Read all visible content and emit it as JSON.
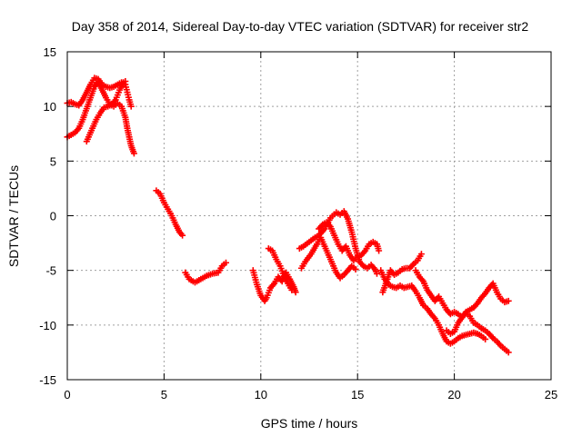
{
  "chart_data": {
    "type": "scatter",
    "title": "Day 358 of 2014, Sidereal Day-to-day VTEC variation (SDTVAR) for receiver str2",
    "xlabel": "GPS time / hours",
    "ylabel": "SDTVAR / TECUs",
    "xlim": [
      0,
      25
    ],
    "ylim": [
      -15,
      15
    ],
    "xticks": [
      0,
      5,
      10,
      15,
      20,
      25
    ],
    "yticks": [
      -15,
      -10,
      -5,
      0,
      5,
      10,
      15
    ],
    "grid": true,
    "marker": "+",
    "color": "#ff0000",
    "series": [
      {
        "name": "arc-1",
        "points": [
          [
            0.0,
            10.3
          ],
          [
            0.2,
            10.4
          ],
          [
            0.4,
            10.2
          ],
          [
            0.6,
            10.1
          ],
          [
            0.8,
            10.6
          ],
          [
            1.0,
            11.3
          ],
          [
            1.2,
            12.0
          ],
          [
            1.4,
            12.6
          ],
          [
            1.6,
            12.5
          ],
          [
            1.8,
            12.0
          ],
          [
            2.0,
            11.8
          ],
          [
            2.2,
            11.7
          ],
          [
            2.4,
            11.8
          ],
          [
            2.6,
            12.0
          ],
          [
            2.8,
            12.2
          ],
          [
            3.0,
            12.0
          ],
          [
            3.1,
            11.3
          ],
          [
            3.2,
            10.6
          ],
          [
            3.3,
            10.0
          ]
        ]
      },
      {
        "name": "arc-2",
        "points": [
          [
            0.0,
            7.2
          ],
          [
            0.2,
            7.4
          ],
          [
            0.4,
            7.6
          ],
          [
            0.6,
            8.0
          ],
          [
            0.8,
            8.8
          ],
          [
            1.0,
            9.8
          ],
          [
            1.2,
            10.8
          ],
          [
            1.4,
            11.8
          ],
          [
            1.6,
            12.2
          ],
          [
            1.8,
            11.5
          ],
          [
            2.0,
            10.8
          ],
          [
            2.2,
            10.2
          ],
          [
            2.4,
            10.0
          ],
          [
            2.6,
            10.3
          ],
          [
            2.8,
            10.0
          ],
          [
            3.0,
            9.0
          ],
          [
            3.1,
            8.0
          ],
          [
            3.2,
            7.2
          ],
          [
            3.3,
            6.4
          ],
          [
            3.45,
            5.7
          ]
        ]
      },
      {
        "name": "arc-3",
        "points": [
          [
            1.0,
            6.8
          ],
          [
            1.1,
            7.2
          ],
          [
            1.3,
            8.0
          ],
          [
            1.5,
            8.8
          ],
          [
            1.7,
            9.4
          ],
          [
            1.9,
            9.9
          ],
          [
            2.1,
            10.0
          ],
          [
            2.3,
            10.2
          ],
          [
            2.5,
            10.6
          ],
          [
            2.7,
            11.5
          ],
          [
            2.9,
            12.2
          ],
          [
            3.0,
            12.3
          ]
        ]
      },
      {
        "name": "arc-4",
        "points": [
          [
            4.6,
            2.3
          ],
          [
            4.8,
            2.0
          ],
          [
            5.0,
            1.2
          ],
          [
            5.2,
            0.6
          ],
          [
            5.4,
            0.0
          ],
          [
            5.6,
            -0.8
          ],
          [
            5.8,
            -1.5
          ],
          [
            5.95,
            -1.8
          ]
        ]
      },
      {
        "name": "arc-5",
        "points": [
          [
            6.1,
            -5.2
          ],
          [
            6.3,
            -5.8
          ],
          [
            6.6,
            -6.1
          ],
          [
            6.9,
            -5.8
          ],
          [
            7.2,
            -5.5
          ],
          [
            7.5,
            -5.3
          ],
          [
            7.8,
            -5.2
          ],
          [
            8.0,
            -4.6
          ],
          [
            8.2,
            -4.3
          ]
        ]
      },
      {
        "name": "arc-6",
        "points": [
          [
            9.6,
            -5.0
          ],
          [
            9.8,
            -6.3
          ],
          [
            10.0,
            -7.3
          ],
          [
            10.2,
            -7.8
          ],
          [
            10.3,
            -7.5
          ],
          [
            10.5,
            -6.6
          ],
          [
            10.7,
            -6.2
          ],
          [
            10.9,
            -5.6
          ],
          [
            11.1,
            -6.0
          ],
          [
            11.3,
            -5.2
          ],
          [
            11.5,
            -5.8
          ],
          [
            11.7,
            -6.5
          ],
          [
            11.8,
            -7.0
          ]
        ]
      },
      {
        "name": "arc-7",
        "points": [
          [
            10.4,
            -3.0
          ],
          [
            10.6,
            -3.2
          ],
          [
            10.8,
            -4.0
          ],
          [
            11.0,
            -4.6
          ],
          [
            11.2,
            -5.5
          ],
          [
            11.4,
            -6.2
          ],
          [
            11.6,
            -6.8
          ]
        ]
      },
      {
        "name": "arc-8",
        "points": [
          [
            12.0,
            -3.0
          ],
          [
            12.2,
            -2.8
          ],
          [
            12.5,
            -2.4
          ],
          [
            12.8,
            -2.0
          ],
          [
            13.0,
            -1.8
          ],
          [
            13.3,
            -1.2
          ],
          [
            13.6,
            -0.2
          ],
          [
            13.9,
            0.3
          ],
          [
            14.1,
            0.1
          ],
          [
            14.3,
            0.4
          ],
          [
            14.5,
            -0.3
          ],
          [
            14.7,
            -1.5
          ],
          [
            14.9,
            -3.0
          ],
          [
            15.1,
            -4.2
          ],
          [
            15.3,
            -4.6
          ],
          [
            15.5,
            -4.8
          ],
          [
            15.7,
            -4.5
          ],
          [
            15.9,
            -4.9
          ],
          [
            16.0,
            -5.3
          ]
        ]
      },
      {
        "name": "arc-9",
        "points": [
          [
            12.1,
            -4.8
          ],
          [
            12.3,
            -4.2
          ],
          [
            12.6,
            -3.5
          ],
          [
            12.9,
            -2.6
          ],
          [
            13.1,
            -2.0
          ],
          [
            13.3,
            -2.8
          ],
          [
            13.5,
            -3.6
          ],
          [
            13.7,
            -4.4
          ],
          [
            13.9,
            -5.2
          ],
          [
            14.1,
            -5.7
          ],
          [
            14.3,
            -5.4
          ],
          [
            14.5,
            -5.0
          ],
          [
            14.7,
            -4.6
          ],
          [
            14.9,
            -4.9
          ]
        ]
      },
      {
        "name": "arc-10",
        "points": [
          [
            13.0,
            -1.2
          ],
          [
            13.2,
            -0.8
          ],
          [
            13.4,
            -0.6
          ],
          [
            13.6,
            -1.0
          ],
          [
            13.8,
            -1.8
          ],
          [
            14.0,
            -2.6
          ],
          [
            14.2,
            -3.2
          ],
          [
            14.4,
            -2.8
          ],
          [
            14.6,
            -3.6
          ],
          [
            14.8,
            -4.1
          ],
          [
            15.0,
            -3.8
          ],
          [
            15.2,
            -3.6
          ],
          [
            15.4,
            -3.2
          ],
          [
            15.6,
            -2.6
          ],
          [
            15.8,
            -2.4
          ],
          [
            16.0,
            -2.6
          ],
          [
            16.1,
            -3.2
          ]
        ]
      },
      {
        "name": "arc-11",
        "points": [
          [
            16.2,
            -5.0
          ],
          [
            16.4,
            -5.8
          ],
          [
            16.6,
            -6.3
          ],
          [
            16.8,
            -6.5
          ],
          [
            17.0,
            -6.6
          ],
          [
            17.2,
            -6.4
          ],
          [
            17.4,
            -6.6
          ],
          [
            17.6,
            -6.5
          ],
          [
            17.8,
            -6.4
          ],
          [
            18.0,
            -6.9
          ],
          [
            18.2,
            -7.5
          ],
          [
            18.4,
            -8.2
          ],
          [
            18.6,
            -8.5
          ],
          [
            18.8,
            -9.0
          ],
          [
            19.0,
            -9.4
          ],
          [
            19.2,
            -10.0
          ],
          [
            19.4,
            -10.8
          ],
          [
            19.6,
            -11.5
          ],
          [
            19.8,
            -11.7
          ],
          [
            20.0,
            -11.5
          ],
          [
            20.2,
            -11.2
          ],
          [
            20.4,
            -11.0
          ],
          [
            20.6,
            -10.9
          ],
          [
            20.8,
            -10.8
          ],
          [
            21.0,
            -10.7
          ],
          [
            21.2,
            -10.8
          ],
          [
            21.4,
            -11.0
          ],
          [
            21.6,
            -11.3
          ]
        ]
      },
      {
        "name": "arc-12",
        "points": [
          [
            16.3,
            -7.0
          ],
          [
            16.5,
            -6.0
          ],
          [
            16.7,
            -5.0
          ],
          [
            16.9,
            -5.4
          ],
          [
            17.1,
            -5.2
          ],
          [
            17.3,
            -4.9
          ],
          [
            17.5,
            -4.8
          ],
          [
            17.7,
            -4.8
          ],
          [
            17.9,
            -4.4
          ],
          [
            18.1,
            -4.1
          ],
          [
            18.3,
            -3.5
          ]
        ]
      },
      {
        "name": "arc-13",
        "points": [
          [
            18.0,
            -5.0
          ],
          [
            18.2,
            -5.6
          ],
          [
            18.4,
            -6.0
          ],
          [
            18.6,
            -6.8
          ],
          [
            18.8,
            -7.3
          ],
          [
            19.0,
            -7.8
          ],
          [
            19.2,
            -7.4
          ],
          [
            19.4,
            -8.0
          ],
          [
            19.6,
            -8.6
          ],
          [
            19.8,
            -9.0
          ],
          [
            20.0,
            -8.8
          ],
          [
            20.2,
            -9.0
          ],
          [
            20.4,
            -9.3
          ],
          [
            20.6,
            -8.9
          ],
          [
            20.8,
            -9.2
          ],
          [
            21.0,
            -9.8
          ],
          [
            21.2,
            -10.0
          ],
          [
            21.4,
            -10.3
          ],
          [
            21.6,
            -10.5
          ],
          [
            21.8,
            -10.8
          ],
          [
            22.0,
            -11.2
          ],
          [
            22.2,
            -11.5
          ],
          [
            22.4,
            -11.9
          ],
          [
            22.6,
            -12.2
          ],
          [
            22.8,
            -12.5
          ]
        ]
      },
      {
        "name": "arc-14",
        "points": [
          [
            19.6,
            -10.5
          ],
          [
            19.8,
            -10.8
          ],
          [
            20.0,
            -10.6
          ],
          [
            20.2,
            -9.8
          ],
          [
            20.4,
            -9.3
          ],
          [
            20.6,
            -8.8
          ],
          [
            20.8,
            -8.6
          ],
          [
            21.0,
            -8.4
          ],
          [
            21.2,
            -8.0
          ],
          [
            21.4,
            -7.5
          ],
          [
            21.6,
            -7.1
          ],
          [
            21.8,
            -6.6
          ],
          [
            22.0,
            -6.2
          ],
          [
            22.2,
            -7.0
          ],
          [
            22.4,
            -7.6
          ],
          [
            22.6,
            -7.9
          ],
          [
            22.8,
            -7.8
          ]
        ]
      }
    ]
  }
}
